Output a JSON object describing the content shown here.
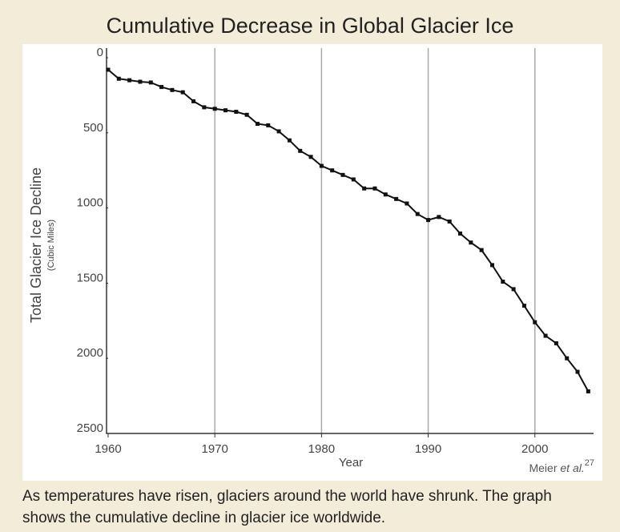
{
  "chart_data": {
    "type": "line",
    "title": "Cumulative Decrease in Global Glacier Ice",
    "x_label": "Year",
    "y_label": "Total Glacier Ice Decline",
    "y_sublabel": "(Cubic Miles)",
    "credit": {
      "author": "Meier",
      "etal": "et al.",
      "ref": "27"
    },
    "caption": [
      "As temperatures have risen, glaciers around the world have shrunk. The graph",
      "shows the cumulative decline in glacier ice worldwide."
    ],
    "x": [
      1960,
      1961,
      1962,
      1963,
      1964,
      1965,
      1966,
      1967,
      1968,
      1969,
      1970,
      1971,
      1972,
      1973,
      1974,
      1975,
      1976,
      1977,
      1978,
      1979,
      1980,
      1981,
      1982,
      1983,
      1984,
      1985,
      1986,
      1987,
      1988,
      1989,
      1990,
      1991,
      1992,
      1993,
      1994,
      1995,
      1996,
      1997,
      1998,
      1999,
      2000,
      2001,
      2002,
      2003,
      2004,
      2005
    ],
    "series": [
      {
        "name": "Cumulative decline",
        "color": "#111111",
        "values": [
          80,
          140,
          150,
          160,
          165,
          195,
          215,
          230,
          290,
          330,
          340,
          350,
          360,
          380,
          440,
          450,
          490,
          550,
          620,
          660,
          720,
          750,
          780,
          810,
          870,
          870,
          910,
          940,
          970,
          1040,
          1080,
          1060,
          1090,
          1170,
          1230,
          1280,
          1380,
          1490,
          1540,
          1650,
          1760,
          1850,
          1900,
          2000,
          2090,
          2220
        ]
      }
    ],
    "xlim": [
      1960,
      2005.5
    ],
    "xticks": [
      1960,
      1970,
      1980,
      1990,
      2000
    ],
    "ylim": [
      0,
      2500
    ],
    "yticks": [
      0,
      500,
      1000,
      1500,
      2000,
      2500
    ],
    "y_inverted": true,
    "grid": true
  }
}
